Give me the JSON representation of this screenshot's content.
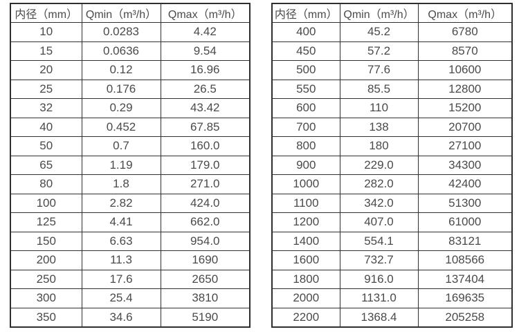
{
  "tables": [
    {
      "name": "small-diameter-flow-spec",
      "headers": [
        "内径（mm）",
        "Qmin（m³/h）",
        "Qmax（m³/h）"
      ],
      "rows": [
        [
          "10",
          "0.0283",
          "4.42"
        ],
        [
          "15",
          "0.0636",
          "9.54"
        ],
        [
          "20",
          "0.12",
          "16.96"
        ],
        [
          "25",
          "0.176",
          "26.5"
        ],
        [
          "32",
          "0.29",
          "43.42"
        ],
        [
          "40",
          "0.452",
          "67.85"
        ],
        [
          "50",
          "0.7",
          "160.0"
        ],
        [
          "65",
          "1.19",
          "179.0"
        ],
        [
          "80",
          "1.8",
          "271.0"
        ],
        [
          "100",
          "2.82",
          "424.0"
        ],
        [
          "125",
          "4.41",
          "662.0"
        ],
        [
          "150",
          "6.63",
          "954.0"
        ],
        [
          "200",
          "11.3",
          "1690"
        ],
        [
          "250",
          "17.6",
          "2650"
        ],
        [
          "300",
          "25.4",
          "3810"
        ],
        [
          "350",
          "34.6",
          "5190"
        ]
      ]
    },
    {
      "name": "large-diameter-flow-spec",
      "headers": [
        "内径（mm）",
        "Qmin（m³/h）",
        "Qmax（m³/h）"
      ],
      "rows": [
        [
          "400",
          "45.2",
          "6780"
        ],
        [
          "450",
          "57.2",
          "8570"
        ],
        [
          "500",
          "77.6",
          "10600"
        ],
        [
          "550",
          "85.5",
          "12800"
        ],
        [
          "600",
          "110",
          "15200"
        ],
        [
          "700",
          "138",
          "20700"
        ],
        [
          "800",
          "180",
          "27100"
        ],
        [
          "900",
          "229.0",
          "34300"
        ],
        [
          "1000",
          "282.0",
          "42400"
        ],
        [
          "1100",
          "342.0",
          "51300"
        ],
        [
          "1200",
          "407.0",
          "61000"
        ],
        [
          "1400",
          "554.1",
          "83121"
        ],
        [
          "1600",
          "732.7",
          "108566"
        ],
        [
          "1800",
          "916.0",
          "137404"
        ],
        [
          "2000",
          "1131.0",
          "169635"
        ],
        [
          "2200",
          "1368.4",
          "205258"
        ]
      ]
    }
  ]
}
